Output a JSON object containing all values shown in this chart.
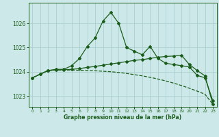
{
  "title": "Graphe pression niveau de la mer (hPa)",
  "background_color": "#cce8e8",
  "grid_color": "#aad0d0",
  "line_color": "#1a5c1a",
  "x_ticks": [
    0,
    1,
    2,
    3,
    4,
    5,
    6,
    7,
    8,
    9,
    10,
    11,
    12,
    13,
    14,
    15,
    16,
    17,
    18,
    19,
    20,
    21,
    22,
    23
  ],
  "y_ticks": [
    1023,
    1024,
    1025,
    1026
  ],
  "ylim": [
    1022.55,
    1026.85
  ],
  "xlim": [
    -0.5,
    23.5
  ],
  "series1": [
    1023.75,
    1023.9,
    1024.05,
    1024.1,
    1024.1,
    1024.25,
    1024.55,
    1025.05,
    1025.4,
    1026.1,
    1026.45,
    1026.0,
    1025.0,
    1024.85,
    1024.7,
    1025.05,
    1024.55,
    1024.35,
    1024.3,
    1024.25,
    1024.2,
    1023.85,
    1023.75,
    1022.8
  ],
  "series2": [
    1023.75,
    1023.9,
    1024.05,
    1024.08,
    1024.08,
    1024.1,
    1024.13,
    1024.18,
    1024.22,
    1024.27,
    1024.32,
    1024.37,
    1024.42,
    1024.47,
    1024.5,
    1024.55,
    1024.6,
    1024.63,
    1024.65,
    1024.68,
    1024.3,
    1024.05,
    1023.83,
    1022.65
  ],
  "series3": [
    1023.75,
    1023.9,
    1024.05,
    1024.07,
    1024.07,
    1024.07,
    1024.06,
    1024.05,
    1024.04,
    1024.02,
    1024.0,
    1023.97,
    1023.93,
    1023.88,
    1023.83,
    1023.77,
    1023.7,
    1023.62,
    1023.53,
    1023.43,
    1023.32,
    1023.2,
    1023.07,
    1022.65
  ]
}
